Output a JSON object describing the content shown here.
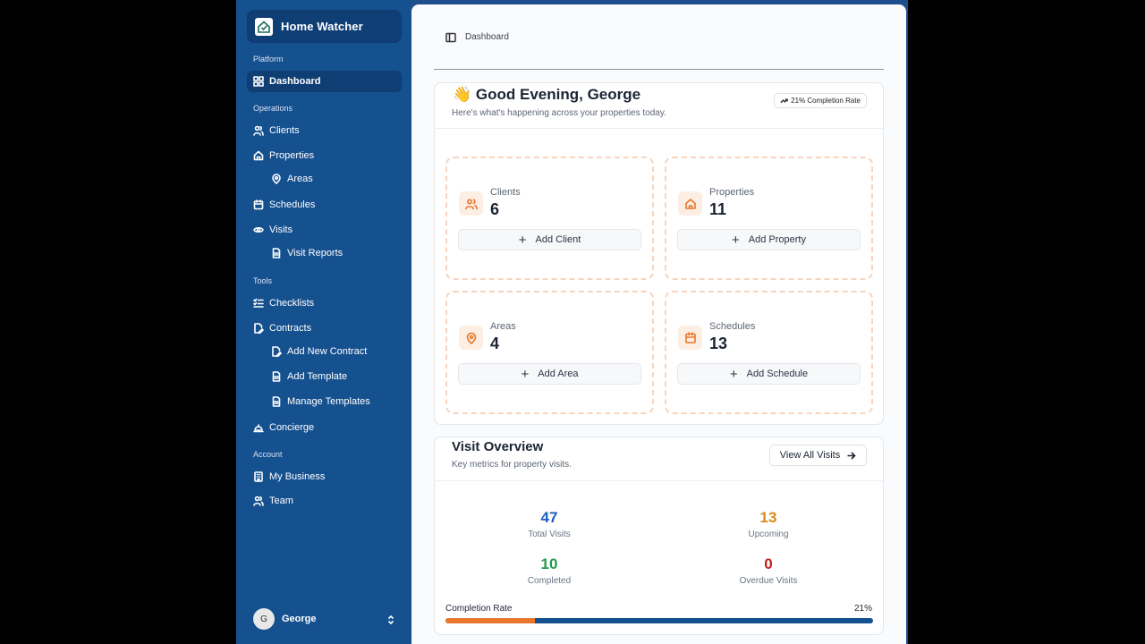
{
  "app": {
    "name": "Home Watcher"
  },
  "sidebar": {
    "sections": {
      "platform": "Platform",
      "operations": "Operations",
      "tools": "Tools",
      "account": "Account"
    },
    "items": {
      "dashboard": "Dashboard",
      "clients": "Clients",
      "properties": "Properties",
      "areas": "Areas",
      "schedules": "Schedules",
      "visits": "Visits",
      "visit_reports": "Visit Reports",
      "checklists": "Checklists",
      "contracts": "Contracts",
      "add_new_contract": "Add New Contract",
      "add_template": "Add Template",
      "manage_templates": "Manage Templates",
      "concierge": "Concierge",
      "my_business": "My Business",
      "team": "Team"
    },
    "user": {
      "initial": "G",
      "name": "George"
    }
  },
  "header": {
    "breadcrumb": "Dashboard"
  },
  "welcome": {
    "emoji": "👋",
    "title": "Good Evening, George",
    "subtitle": "Here's what's happening across your properties today.",
    "badge": "21% Completion Rate"
  },
  "stats": {
    "clients": {
      "label": "Clients",
      "value": "6",
      "button": "Add Client"
    },
    "properties": {
      "label": "Properties",
      "value": "11",
      "button": "Add Property"
    },
    "areas": {
      "label": "Areas",
      "value": "4",
      "button": "Add Area"
    },
    "schedules": {
      "label": "Schedules",
      "value": "13",
      "button": "Add Schedule"
    }
  },
  "visit_overview": {
    "title": "Visit Overview",
    "subtitle": "Key metrics for property visits.",
    "view_all": "View All Visits",
    "metrics": {
      "total": {
        "value": "47",
        "label": "Total Visits",
        "color": "#1f5fbf"
      },
      "upcoming": {
        "value": "13",
        "label": "Upcoming",
        "color": "#d98a1a"
      },
      "completed": {
        "value": "10",
        "label": "Completed",
        "color": "#1f9a4a"
      },
      "overdue": {
        "value": "0",
        "label": "Overdue Visits",
        "color": "#c42020"
      }
    },
    "completion_label": "Completion Rate",
    "completion_pct": "21%",
    "completion_fraction": 0.21
  },
  "colors": {
    "sidebar": "#15508f",
    "accent": "#e8772e"
  }
}
